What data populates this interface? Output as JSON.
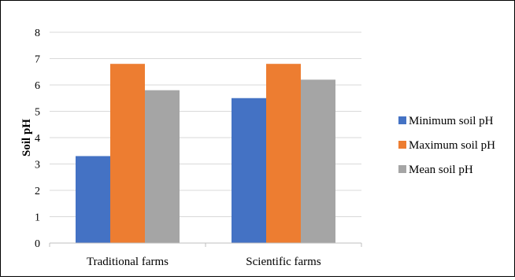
{
  "chart_data": {
    "type": "bar",
    "categories": [
      "Traditional farms",
      "Scientific farms"
    ],
    "series": [
      {
        "name": "Minimum soil pH",
        "color": "#4472C4",
        "values": [
          3.3,
          5.5
        ]
      },
      {
        "name": "Maximum soil pH",
        "color": "#ED7D31",
        "values": [
          6.8,
          6.8
        ]
      },
      {
        "name": "Mean soil pH",
        "color": "#A5A5A5",
        "values": [
          5.8,
          6.2
        ]
      }
    ],
    "title": "",
    "xlabel": "",
    "ylabel": "Soil pH",
    "ylim": [
      0,
      8
    ],
    "yticks": [
      "0",
      "1",
      "2",
      "3",
      "4",
      "5",
      "6",
      "7",
      "8"
    ],
    "grid": true,
    "legend_position": "right"
  }
}
